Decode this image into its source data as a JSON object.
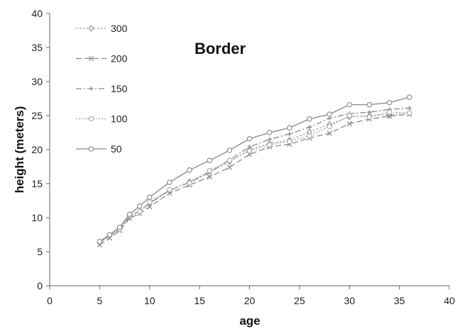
{
  "chart_data": {
    "type": "line",
    "title": "Border",
    "xlabel": "age",
    "ylabel": "height (meters)",
    "xlim": [
      0,
      40
    ],
    "ylim": [
      0,
      40
    ],
    "xticks": [
      0,
      5,
      10,
      15,
      20,
      25,
      30,
      35,
      40
    ],
    "yticks": [
      0,
      5,
      10,
      15,
      20,
      25,
      30,
      35,
      40
    ],
    "grid": false,
    "legend_position": "top-left",
    "x": [
      5,
      6,
      7,
      8,
      9,
      10,
      12,
      14,
      16,
      18,
      20,
      22,
      24,
      26,
      28,
      30,
      32,
      34,
      36
    ],
    "series": [
      {
        "name": "300",
        "marker": "diamond",
        "dash": "2,3",
        "color": "#8a8a8a",
        "values": [
          6.3,
          7.4,
          8.4,
          10.2,
          10.9,
          12.2,
          14.0,
          15.3,
          16.8,
          18.2,
          20.0,
          20.9,
          21.4,
          22.6,
          23.7,
          24.8,
          25.0,
          25.1,
          25.4
        ]
      },
      {
        "name": "200",
        "marker": "x",
        "dash": "8,4",
        "color": "#8a8a8a",
        "values": [
          6.0,
          7.0,
          8.1,
          9.9,
          10.6,
          11.6,
          13.6,
          14.8,
          16.0,
          17.4,
          19.3,
          20.4,
          20.8,
          21.7,
          22.4,
          23.8,
          24.5,
          24.9,
          25.2
        ]
      },
      {
        "name": "150",
        "marker": "plus",
        "dash": "8,3,2,3",
        "color": "#8a8a8a",
        "values": [
          6.4,
          7.3,
          8.3,
          10.1,
          11.0,
          12.1,
          14.0,
          15.2,
          16.6,
          18.5,
          20.4,
          21.5,
          22.3,
          23.3,
          24.6,
          25.3,
          25.5,
          25.9,
          26.1
        ]
      },
      {
        "name": "100",
        "marker": "circle",
        "dash": "2,2",
        "color": "#aaaaaa",
        "values": [
          6.4,
          7.4,
          8.3,
          10.3,
          10.9,
          12.3,
          14.1,
          15.1,
          16.9,
          18.4,
          19.8,
          20.7,
          21.2,
          22.0,
          23.4,
          25.0,
          24.8,
          25.5,
          25.4
        ]
      },
      {
        "name": "50",
        "marker": "circle",
        "dash": "",
        "color": "#888888",
        "values": [
          6.5,
          7.5,
          8.6,
          10.5,
          11.7,
          13.0,
          15.2,
          17.0,
          18.4,
          19.9,
          21.6,
          22.5,
          23.2,
          24.5,
          25.2,
          26.6,
          26.6,
          26.9,
          27.7
        ]
      }
    ]
  }
}
